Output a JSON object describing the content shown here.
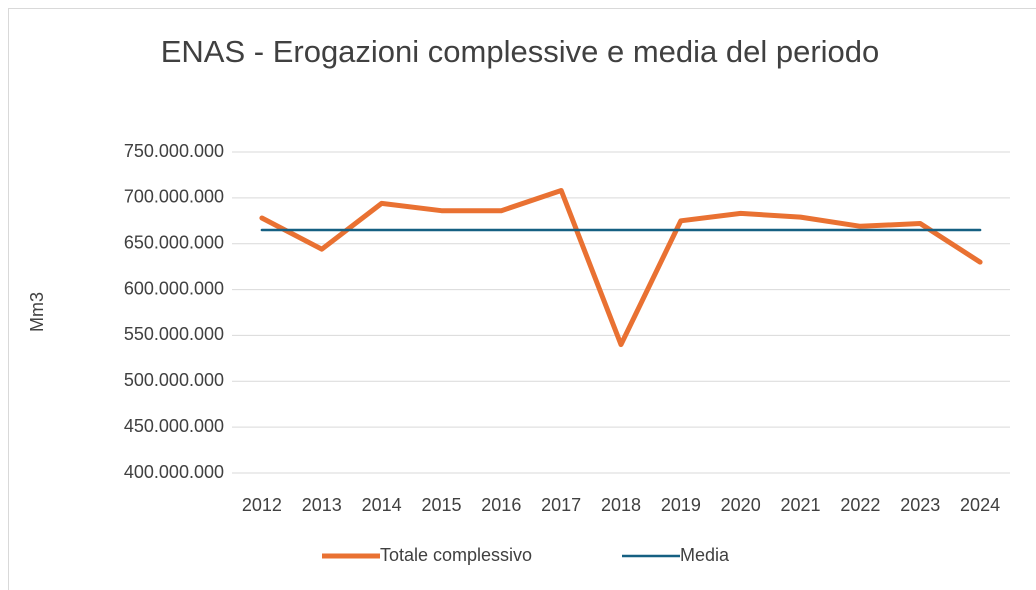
{
  "chart_data": {
    "type": "line",
    "title": "ENAS - Erogazioni complessive e media del periodo",
    "y_label": "Mm3",
    "categories": [
      "2012",
      "2013",
      "2014",
      "2015",
      "2016",
      "2017",
      "2018",
      "2019",
      "2020",
      "2021",
      "2022",
      "2023",
      "2024"
    ],
    "series": [
      {
        "name": "Totale complessivo",
        "color": "#e97132",
        "values": [
          678000000,
          644000000,
          694000000,
          686000000,
          686000000,
          708000000,
          540000000,
          675000000,
          683000000,
          679000000,
          669000000,
          672000000,
          630000000
        ]
      },
      {
        "name": "Media",
        "color": "#156082",
        "values": [
          665000000,
          665000000,
          665000000,
          665000000,
          665000000,
          665000000,
          665000000,
          665000000,
          665000000,
          665000000,
          665000000,
          665000000,
          665000000
        ]
      }
    ],
    "ylim": [
      400000000,
      750000000
    ],
    "yticks": [
      {
        "value": 400000000,
        "label": "400.000.000"
      },
      {
        "value": 450000000,
        "label": "450.000.000"
      },
      {
        "value": 500000000,
        "label": "500.000.000"
      },
      {
        "value": 550000000,
        "label": "550.000.000"
      },
      {
        "value": 600000000,
        "label": "600.000.000"
      },
      {
        "value": 650000000,
        "label": "650.000.000"
      },
      {
        "value": 700000000,
        "label": "700.000.000"
      },
      {
        "value": 750000000,
        "label": "750.000.000"
      }
    ],
    "grid": true,
    "legend": "bottom"
  }
}
